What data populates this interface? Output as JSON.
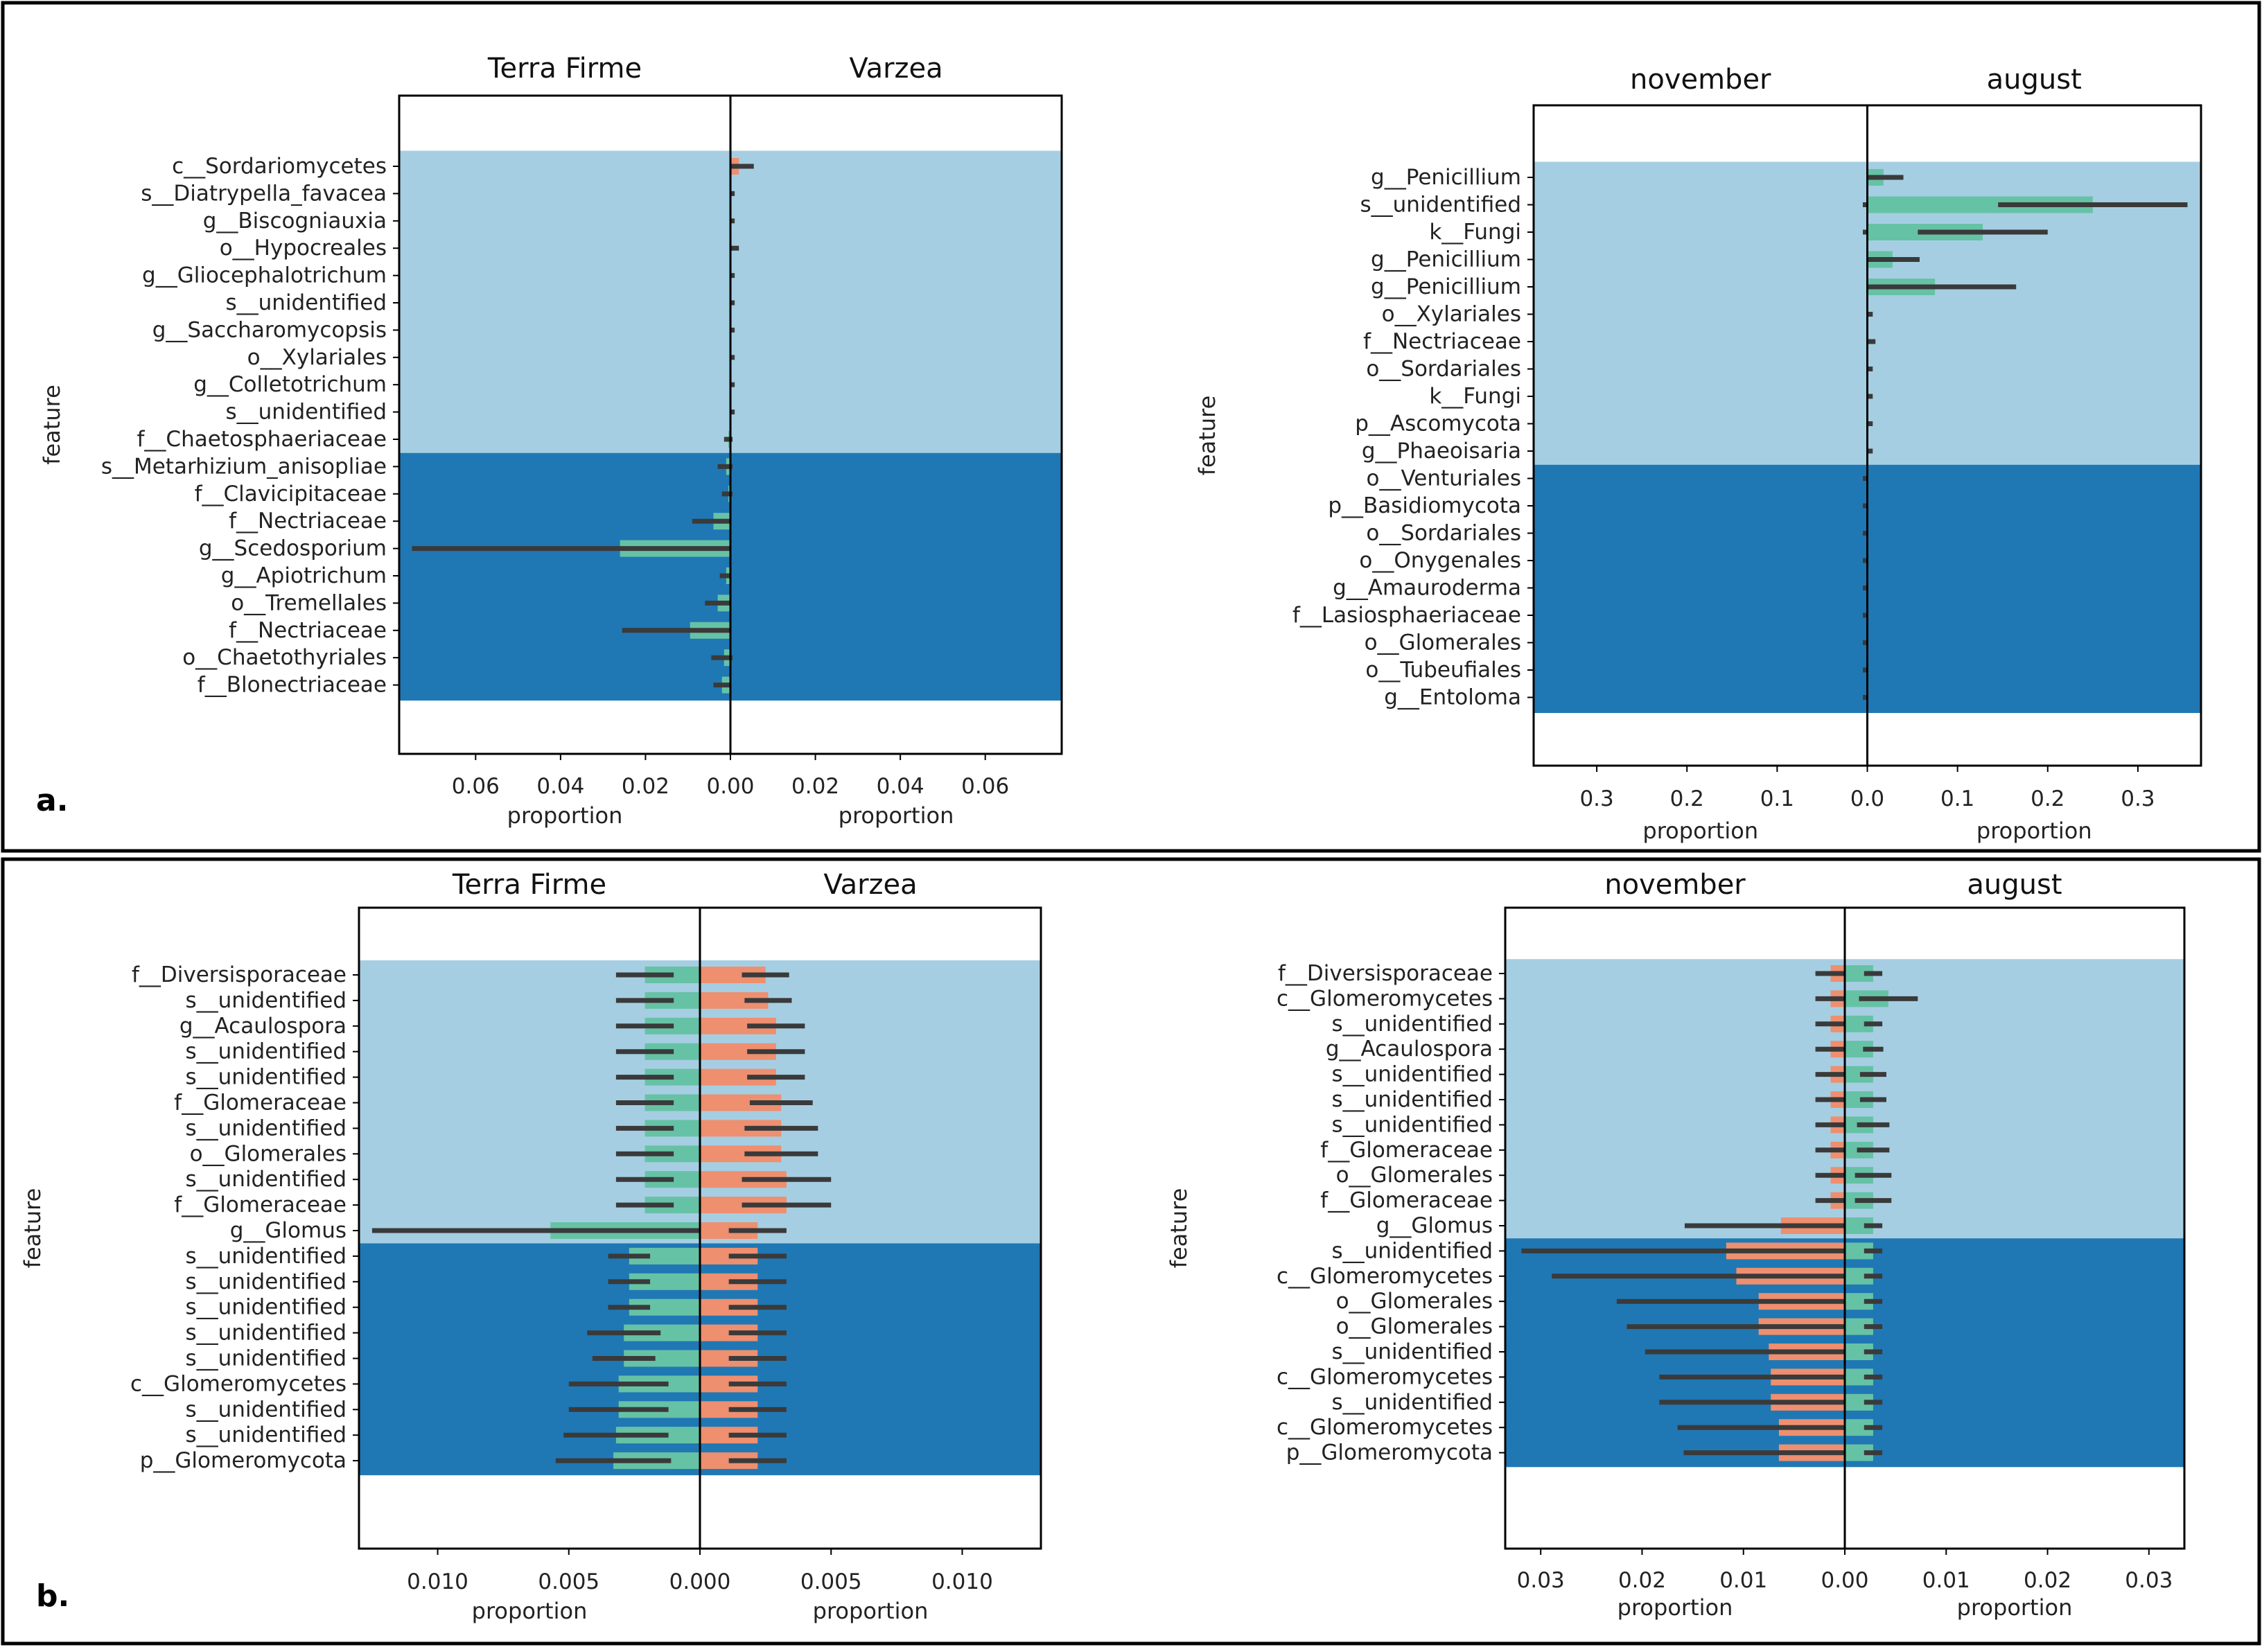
{
  "colors": {
    "light_band": "#a6cee3",
    "dark_band": "#1f78b4",
    "green_bar": "#66c2a5",
    "salmon_bar": "#ee8f6f",
    "error_bar": "#3a3a3a",
    "axis": "#000000"
  },
  "panels": {
    "a": "a.",
    "b": "b."
  },
  "chart_data": [
    {
      "type": "bar",
      "panel": "a.",
      "title_left": "Terra Firme",
      "title_right": "Varzea",
      "ylabel": "feature",
      "xlabel_left": "proportion",
      "xlabel_right": "proportion",
      "xlim": [
        -0.078,
        0.078
      ],
      "xticks": [
        -0.06,
        -0.04,
        -0.02,
        0.0,
        0.02,
        0.04,
        0.06
      ],
      "xtick_labels": [
        "0.06",
        "0.04",
        "0.02",
        "0.00",
        "0.02",
        "0.04",
        "0.06"
      ],
      "light_count": 11,
      "features": [
        "c__Sordariomycetes",
        "s__Diatrypella_favacea",
        "g__Biscogniauxia",
        "o__Hypocreales",
        "g__Gliocephalotrichum",
        "s__unidentified",
        "g__Saccharomycopsis",
        "o__Xylariales",
        "g__Colletotrichum",
        "s__unidentified",
        "f__Chaetosphaeriaceae",
        "s__Metarhizium_anisopliae",
        "f__Clavicipitaceae",
        "f__Nectriaceae",
        "g__Scedosporium",
        "g__Apiotrichum",
        "o__Tremellales",
        "f__Nectriaceae",
        "o__Chaetothyriales",
        "f__Blonectriaceae"
      ],
      "series": [
        {
          "name": "Terra Firme",
          "side": "left",
          "color": "#66c2a5",
          "values": [
            0.0,
            0.0,
            0.0,
            0.0,
            0.0,
            0.0,
            0.0,
            0.0,
            0.0,
            0.0,
            0.0005,
            0.001,
            0.0005,
            0.004,
            0.026,
            0.001,
            0.003,
            0.0095,
            0.0015,
            0.002
          ],
          "errors": [
            0.0,
            0.0,
            0.0,
            0.0,
            0.0,
            0.0,
            0.0,
            0.0,
            0.0,
            0.0,
            0.001,
            0.002,
            0.0015,
            0.005,
            0.049,
            0.0015,
            0.003,
            0.016,
            0.003,
            0.002
          ]
        },
        {
          "name": "Varzea",
          "side": "right",
          "color": "#ee8f6f",
          "values": [
            0.002,
            0.0,
            0.0,
            0.0,
            0.0,
            0.0,
            0.0,
            0.0,
            0.0,
            0.0,
            0.0,
            0.0,
            0.0,
            0.0,
            0.0,
            0.0,
            0.0,
            0.0,
            0.0,
            0.0
          ],
          "errors": [
            0.0035,
            0.001,
            0.001,
            0.002,
            0.001,
            0.001,
            0.001,
            0.001,
            0.001,
            0.001,
            0.0005,
            0.0005,
            0.0005,
            0.0,
            0.0,
            0.0,
            0.0,
            0.0,
            0.0005,
            0.0
          ]
        }
      ]
    },
    {
      "type": "bar",
      "panel": "a.",
      "title_left": "november",
      "title_right": "august",
      "ylabel": "feature",
      "xlabel_left": "proportion",
      "xlabel_right": "proportion",
      "xlim": [
        -0.37,
        0.37
      ],
      "xticks": [
        -0.3,
        -0.2,
        -0.1,
        0.0,
        0.1,
        0.2,
        0.3
      ],
      "xtick_labels": [
        "0.3",
        "0.2",
        "0.1",
        "0.0",
        "0.1",
        "0.2",
        "0.3"
      ],
      "light_count": 11,
      "features": [
        "g__Penicillium",
        "s__unidentified",
        "k__Fungi",
        "g__Penicillium",
        "g__Penicillium",
        "o__Xylariales",
        "f__Nectriaceae",
        "o__Sordariales",
        "k__Fungi",
        "p__Ascomycota",
        "g__Phaeoisaria",
        "o__Venturiales",
        "p__Basidiomycota",
        "o__Sordariales",
        "o__Onygenales",
        "g__Amauroderma",
        "f__Lasiosphaeriaceae",
        "o__Glomerales",
        "o__Tubeufiales",
        "g__Entoloma"
      ],
      "series": [
        {
          "name": "november",
          "side": "left",
          "color": "#ee8f6f",
          "values": [
            0.0,
            0.0,
            0.0,
            0.0,
            0.0,
            0.0,
            0.0,
            0.0,
            0.0,
            0.0,
            0.0,
            0.0,
            0.0,
            0.0,
            0.0,
            0.0,
            0.0,
            0.0,
            0.0,
            0.0
          ],
          "errors": [
            0.0,
            0.005,
            0.005,
            0.0,
            0.0,
            0.0,
            0.0,
            0.0,
            0.0,
            0.0,
            0.0,
            0.005,
            0.005,
            0.005,
            0.005,
            0.005,
            0.005,
            0.005,
            0.005,
            0.005
          ]
        },
        {
          "name": "august",
          "side": "right",
          "color": "#66c2a5",
          "values": [
            0.018,
            0.25,
            0.128,
            0.028,
            0.075,
            0.0,
            0.0,
            0.0,
            0.0,
            0.0,
            0.0,
            0.0,
            0.0,
            0.0,
            0.0,
            0.0,
            0.0,
            0.0,
            0.0,
            0.0
          ],
          "errors": [
            0.022,
            0.105,
            0.072,
            0.03,
            0.09,
            0.006,
            0.009,
            0.006,
            0.006,
            0.006,
            0.006,
            0.0,
            0.0,
            0.0,
            0.0,
            0.0,
            0.0,
            0.0,
            0.0,
            0.0
          ]
        }
      ]
    },
    {
      "type": "bar",
      "panel": "b.",
      "title_left": "Terra Firme",
      "title_right": "Varzea",
      "ylabel": "feature",
      "xlabel_left": "proportion",
      "xlabel_right": "proportion",
      "xlim": [
        -0.013,
        0.013
      ],
      "xticks": [
        -0.01,
        -0.005,
        0.0,
        0.005,
        0.01
      ],
      "xtick_labels": [
        "0.010",
        "0.005",
        "0.000",
        "0.005",
        "0.010"
      ],
      "light_count": 11,
      "features": [
        "f__Diversisporaceae",
        "s__unidentified",
        "g__Acaulospora",
        "s__unidentified",
        "s__unidentified",
        "f__Glomeraceae",
        "s__unidentified",
        "o__Glomerales",
        "s__unidentified",
        "f__Glomeraceae",
        "g__Glomus",
        "s__unidentified",
        "s__unidentified",
        "s__unidentified",
        "s__unidentified",
        "s__unidentified",
        "c__Glomeromycetes",
        "s__unidentified",
        "s__unidentified",
        "p__Glomeromycota"
      ],
      "series": [
        {
          "name": "Terra Firme",
          "side": "left",
          "color": "#66c2a5",
          "values": [
            0.0021,
            0.0021,
            0.0021,
            0.0021,
            0.0021,
            0.0021,
            0.0021,
            0.0021,
            0.0021,
            0.0021,
            0.0057,
            0.0027,
            0.0027,
            0.0027,
            0.0029,
            0.0029,
            0.0031,
            0.0031,
            0.0032,
            0.0033
          ],
          "errors": [
            0.0011,
            0.0011,
            0.0011,
            0.0011,
            0.0011,
            0.0011,
            0.0011,
            0.0011,
            0.0011,
            0.0011,
            0.0068,
            0.0008,
            0.0008,
            0.0008,
            0.0014,
            0.0012,
            0.0019,
            0.0019,
            0.002,
            0.0022
          ]
        },
        {
          "name": "Varzea",
          "side": "right",
          "color": "#ee8f6f",
          "values": [
            0.0025,
            0.0026,
            0.0029,
            0.0029,
            0.0029,
            0.0031,
            0.0031,
            0.0031,
            0.0033,
            0.0033,
            0.0022,
            0.0022,
            0.0022,
            0.0022,
            0.0022,
            0.0022,
            0.0022,
            0.0022,
            0.0022,
            0.0022
          ],
          "errors": [
            0.0009,
            0.0009,
            0.0011,
            0.0011,
            0.0011,
            0.0012,
            0.0014,
            0.0014,
            0.0017,
            0.0017,
            0.0011,
            0.0011,
            0.0011,
            0.0011,
            0.0011,
            0.0011,
            0.0011,
            0.0011,
            0.0011,
            0.0011
          ]
        }
      ]
    },
    {
      "type": "bar",
      "panel": "b.",
      "title_left": "november",
      "title_right": "august",
      "ylabel": "feature",
      "xlabel_left": "proportion",
      "xlabel_right": "proportion",
      "xlim": [
        -0.0335,
        0.0335
      ],
      "xticks": [
        -0.03,
        -0.02,
        -0.01,
        0.0,
        0.01,
        0.02,
        0.03
      ],
      "xtick_labels": [
        "0.03",
        "0.02",
        "0.01",
        "0.00",
        "0.01",
        "0.02",
        "0.03"
      ],
      "light_count": 11,
      "features": [
        "f__Diversisporaceae",
        "c__Glomeromycetes",
        "s__unidentified",
        "g__Acaulospora",
        "s__unidentified",
        "s__unidentified",
        "s__unidentified",
        "f__Glomeraceae",
        "o__Glomerales",
        "f__Glomeraceae",
        "g__Glomus",
        "s__unidentified",
        "c__Glomeromycetes",
        "o__Glomerales",
        "o__Glomerales",
        "s__unidentified",
        "c__Glomeromycetes",
        "s__unidentified",
        "c__Glomeromycetes",
        "p__Glomeromycota"
      ],
      "series": [
        {
          "name": "november",
          "side": "left",
          "color": "#ee8f6f",
          "values": [
            0.0014,
            0.0014,
            0.0014,
            0.0014,
            0.0014,
            0.0014,
            0.0014,
            0.0014,
            0.0014,
            0.0014,
            0.0063,
            0.0117,
            0.0107,
            0.0085,
            0.0085,
            0.0075,
            0.0073,
            0.0073,
            0.0065,
            0.0065
          ],
          "errors": [
            0.0015,
            0.0015,
            0.0015,
            0.0015,
            0.0015,
            0.0015,
            0.0015,
            0.0015,
            0.0015,
            0.0015,
            0.0095,
            0.0202,
            0.0182,
            0.014,
            0.013,
            0.0122,
            0.011,
            0.011,
            0.01,
            0.0094
          ]
        },
        {
          "name": "august",
          "side": "right",
          "color": "#66c2a5",
          "values": [
            0.0028,
            0.0043,
            0.0028,
            0.0028,
            0.0028,
            0.0028,
            0.0028,
            0.0028,
            0.0028,
            0.0028,
            0.0028,
            0.0028,
            0.0028,
            0.0028,
            0.0028,
            0.0028,
            0.0028,
            0.0028,
            0.0028,
            0.0028
          ],
          "errors": [
            0.0009,
            0.0029,
            0.0009,
            0.001,
            0.0013,
            0.0013,
            0.0016,
            0.0016,
            0.0018,
            0.0018,
            0.0009,
            0.0009,
            0.0009,
            0.0009,
            0.0009,
            0.0009,
            0.0009,
            0.0009,
            0.0009,
            0.0009
          ]
        }
      ]
    }
  ]
}
